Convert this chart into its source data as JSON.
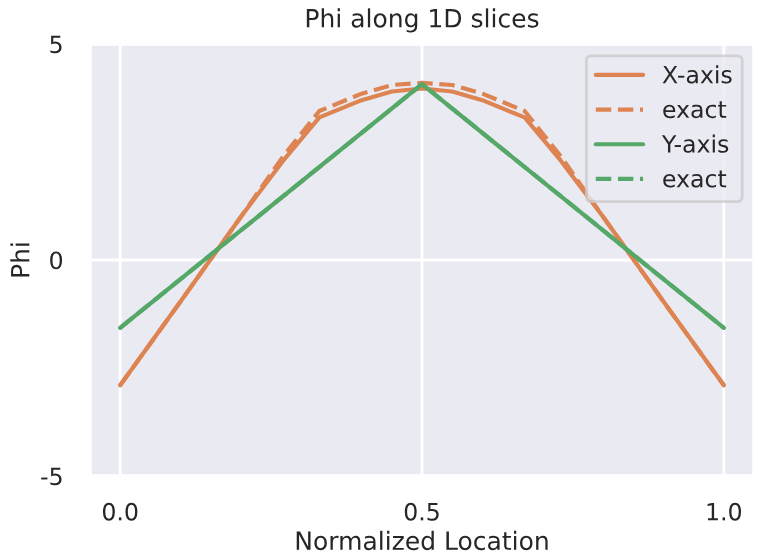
{
  "chart_data": {
    "type": "line",
    "title": "Phi along 1D slices",
    "xlabel": "Normalized Location",
    "ylabel": "Phi",
    "x": [
      0.0,
      0.1,
      0.2,
      0.27,
      0.33,
      0.4,
      0.45,
      0.5,
      0.55,
      0.6,
      0.67,
      0.73,
      0.8,
      0.9,
      1.0
    ],
    "series": [
      {
        "name": "X-axis",
        "color": "#dd8452",
        "line_style": "solid",
        "values": [
          -2.9,
          -0.96,
          1.0,
          2.3,
          3.3,
          3.7,
          3.9,
          3.97,
          3.9,
          3.7,
          3.3,
          2.3,
          1.0,
          -0.96,
          -2.9
        ]
      },
      {
        "name": "exact",
        "color": "#dd8452",
        "line_style": "dashed",
        "values": [
          -2.9,
          -0.96,
          1.0,
          2.4,
          3.45,
          3.85,
          4.05,
          4.1,
          4.05,
          3.85,
          3.45,
          2.4,
          1.0,
          -0.96,
          -2.9
        ]
      },
      {
        "name": "Y-axis",
        "color": "#55a868",
        "line_style": "solid",
        "x": [
          0.0,
          0.5,
          1.0
        ],
        "values": [
          -1.57,
          4.07,
          -1.57
        ]
      },
      {
        "name": "exact",
        "color": "#55a868",
        "line_style": "dashed",
        "x": [
          0.0,
          0.5,
          1.0
        ],
        "values": [
          -1.57,
          4.07,
          -1.57
        ]
      }
    ],
    "xlim": [
      -0.05,
      1.05
    ],
    "xticks": [
      {
        "value": 0,
        "label": "0.0"
      },
      {
        "value": 0.5,
        "label": "0.5"
      },
      {
        "value": 1,
        "label": "1.0"
      }
    ],
    "ylim": [
      -5,
      5
    ],
    "yticks": [
      -5,
      0,
      5
    ],
    "grid": true,
    "legend": "top right"
  }
}
